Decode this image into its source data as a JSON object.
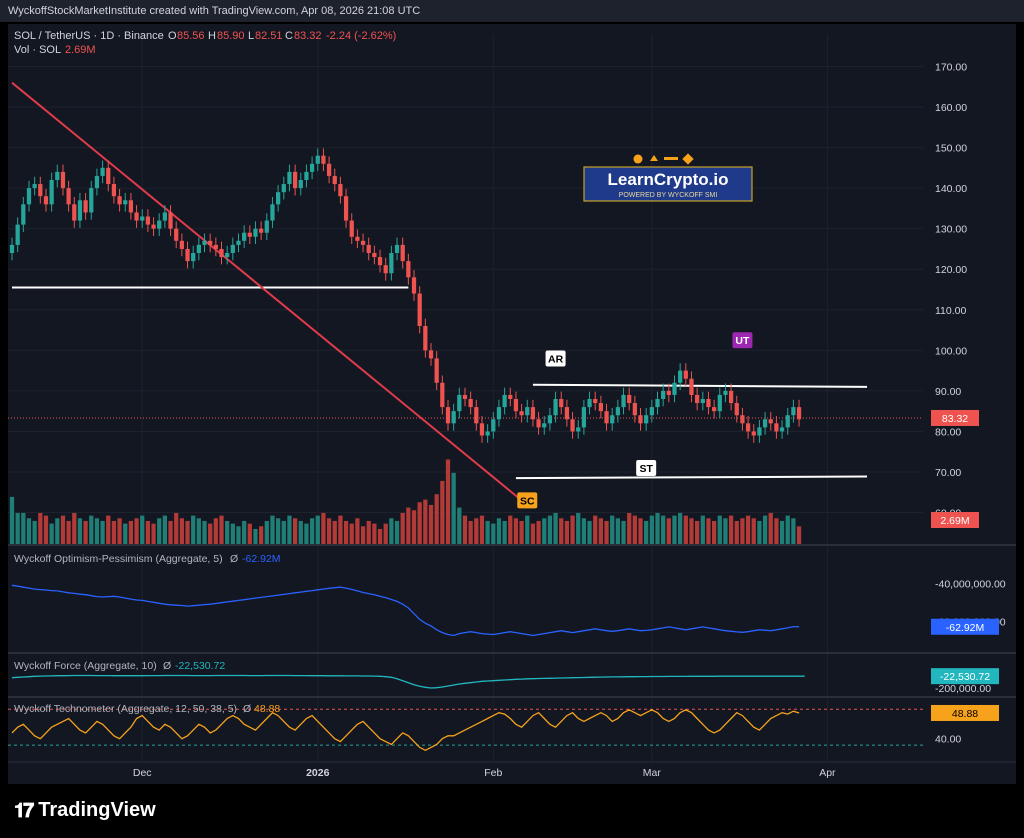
{
  "header": {
    "caption": "WyckoffStockMarketInstitute created with TradingView.com, Apr 08, 2026 21:08 UTC"
  },
  "legend": {
    "symbol": "SOL / TetherUS · 1D · Binance",
    "o_label": "O",
    "o": "85.56",
    "h_label": "H",
    "h": "85.90",
    "l_label": "L",
    "l": "82.51",
    "c_label": "C",
    "c": "83.32",
    "change": "-2.24 (-2.62%)",
    "vol_label": "Vol · SOL",
    "vol": "2.69M"
  },
  "colors": {
    "up": "#26a69a",
    "down": "#ef5350",
    "vol_up": "#1f7f77",
    "vol_down": "#b23a37",
    "trendline": "#e03b4b",
    "hline": "#ffffff",
    "osc_blue": "#2962ff",
    "osc_cyan": "#22b7bf",
    "osc_orange": "#f7a21b",
    "background": "#131722",
    "grid": "#1e222d"
  },
  "watermark": {
    "title": "LearnCrypto.io",
    "subtitle": "POWERED BY WYCKOFF SMI"
  },
  "annotations": {
    "ar": "AR",
    "ut": "UT",
    "st": "ST",
    "sc": "SC"
  },
  "chart_data": [
    {
      "type": "candlestick",
      "title": "SOL / TetherUS · 1D · Binance",
      "yaxis_ticks": [
        "170.00",
        "160.00",
        "150.00",
        "140.00",
        "130.00",
        "120.00",
        "110.00",
        "100.00",
        "90.00",
        "80.00",
        "70.00",
        "60.00"
      ],
      "ylim": [
        52,
        178
      ],
      "last_price": "83.32",
      "x_tick_labels": [
        "Dec",
        "2026",
        "Feb",
        "Mar",
        "Apr"
      ],
      "x_tick_dates": [
        "2025-12-01",
        "2026-01-01",
        "2026-02-01",
        "2026-03-01",
        "2026-04-01"
      ],
      "date_range": [
        "2025-11-08",
        "2026-04-08"
      ],
      "close": [
        126,
        131,
        136,
        140,
        141,
        138,
        136,
        142,
        144,
        140,
        136,
        132,
        137,
        134,
        140,
        143,
        145,
        141,
        138,
        136,
        137,
        134,
        132,
        133,
        131,
        130,
        132,
        134,
        130,
        127,
        125,
        122,
        124,
        126,
        127,
        126,
        125,
        123,
        124,
        126,
        127,
        129,
        128,
        130,
        129,
        132,
        136,
        139,
        141,
        144,
        140,
        142,
        144,
        146,
        148,
        146,
        143,
        141,
        138,
        132,
        128,
        127,
        126,
        124,
        123,
        121,
        119,
        124,
        126,
        122,
        118,
        114,
        106,
        100,
        98,
        92,
        86,
        82,
        85,
        89,
        88,
        86,
        82,
        79,
        80,
        83,
        86,
        89,
        88,
        85,
        84,
        86,
        83,
        81,
        82,
        84,
        88,
        86,
        83,
        80,
        81,
        86,
        88,
        87,
        85,
        82,
        84,
        86,
        89,
        87,
        84,
        82,
        84,
        86,
        88,
        90,
        89,
        92,
        95,
        93,
        89,
        87,
        88,
        86,
        85,
        89,
        90,
        87,
        84,
        82,
        80,
        79,
        81,
        83,
        82,
        80,
        81,
        84,
        86,
        83
      ],
      "horizontal_lines": [
        {
          "price": 115.5,
          "from": "2025-11-08",
          "to": "2026-01-17"
        },
        {
          "price": 91.5,
          "from": "2026-02-08",
          "to": "2026-04-08",
          "end_price": 91.0
        },
        {
          "price": 68.5,
          "from": "2026-02-05",
          "to": "2026-04-08",
          "end_price": 68.9
        }
      ],
      "trendline": {
        "from_date": "2025-11-08",
        "from_price": 166,
        "to_date": "2026-02-06",
        "to_price": 63
      },
      "labels": [
        {
          "text": "AR",
          "date": "2026-02-12",
          "price": 98
        },
        {
          "text": "UT",
          "date": "2026-03-17",
          "price": 102.5
        },
        {
          "text": "ST",
          "date": "2026-02-28",
          "price": 71
        },
        {
          "text": "SC",
          "date": "2026-02-07",
          "price": 63
        }
      ],
      "volume_label": "2.69M",
      "volume": [
        0.9,
        0.6,
        0.6,
        0.5,
        0.45,
        0.6,
        0.55,
        0.4,
        0.5,
        0.55,
        0.45,
        0.6,
        0.5,
        0.45,
        0.55,
        0.5,
        0.45,
        0.55,
        0.45,
        0.5,
        0.4,
        0.45,
        0.5,
        0.55,
        0.45,
        0.4,
        0.5,
        0.55,
        0.45,
        0.6,
        0.5,
        0.45,
        0.55,
        0.5,
        0.45,
        0.4,
        0.5,
        0.55,
        0.45,
        0.4,
        0.35,
        0.45,
        0.4,
        0.3,
        0.35,
        0.45,
        0.55,
        0.5,
        0.45,
        0.55,
        0.5,
        0.45,
        0.4,
        0.5,
        0.55,
        0.6,
        0.5,
        0.45,
        0.55,
        0.45,
        0.4,
        0.5,
        0.35,
        0.45,
        0.4,
        0.3,
        0.4,
        0.5,
        0.45,
        0.6,
        0.7,
        0.65,
        0.8,
        0.85,
        0.75,
        0.95,
        1.2,
        1.6,
        1.35,
        0.7,
        0.55,
        0.45,
        0.5,
        0.55,
        0.45,
        0.4,
        0.5,
        0.45,
        0.55,
        0.5,
        0.45,
        0.55,
        0.4,
        0.45,
        0.5,
        0.55,
        0.6,
        0.5,
        0.45,
        0.55,
        0.6,
        0.5,
        0.45,
        0.55,
        0.5,
        0.45,
        0.55,
        0.5,
        0.45,
        0.6,
        0.55,
        0.5,
        0.45,
        0.55,
        0.6,
        0.55,
        0.5,
        0.55,
        0.6,
        0.55,
        0.5,
        0.45,
        0.55,
        0.5,
        0.45,
        0.55,
        0.5,
        0.55,
        0.45,
        0.5,
        0.55,
        0.5,
        0.45,
        0.55,
        0.6,
        0.5,
        0.45,
        0.55,
        0.5,
        0.35
      ]
    },
    {
      "type": "line",
      "title": "Wyckoff Optimism-Pessimism (Aggregate, 5)",
      "symbol": "Ø",
      "last_value_label": "-62.92M",
      "yaxis_ticks": [
        "-40,000,000.00",
        "-60,000,000.00"
      ],
      "ylim": [
        -72000000,
        -34000000
      ],
      "values": [
        -41,
        -41.5,
        -42,
        -42.5,
        -43,
        -43.3,
        -43.5,
        -43.8,
        -44,
        -44.5,
        -45,
        -45.3,
        -45.7,
        -46,
        -46.5,
        -47,
        -47.2,
        -47,
        -46.8,
        -47.2,
        -47.8,
        -48.3,
        -48.8,
        -49,
        -49.5,
        -50,
        -50.5,
        -51,
        -51.3,
        -51.5,
        -51.7,
        -52,
        -51.8,
        -51.5,
        -51.2,
        -51,
        -50.6,
        -50.2,
        -49.8,
        -49.4,
        -49,
        -48.6,
        -48.2,
        -47.8,
        -47.4,
        -47,
        -46.6,
        -46.2,
        -45.8,
        -45.4,
        -45,
        -44.6,
        -44.2,
        -43.8,
        -43.4,
        -43,
        -42.6,
        -42.3,
        -42,
        -42.5,
        -43.2,
        -44,
        -44.8,
        -45.4,
        -46,
        -46.8,
        -47.5,
        -48.5,
        -49.5,
        -51,
        -53,
        -56,
        -59,
        -61,
        -62.5,
        -64.5,
        -66,
        -67,
        -67.5,
        -66.5,
        -66,
        -65.5,
        -66,
        -66.5,
        -66.8,
        -67,
        -66.5,
        -66,
        -65.5,
        -66,
        -66.5,
        -67,
        -67.5,
        -67,
        -66.5,
        -66,
        -65.5,
        -65,
        -65.5,
        -66,
        -65.5,
        -65,
        -64.5,
        -64,
        -64.5,
        -65,
        -65.3,
        -65,
        -64.5,
        -64,
        -64.5,
        -65,
        -64.8,
        -64.5,
        -64,
        -63.5,
        -63,
        -63.5,
        -64,
        -64.5,
        -64,
        -63.5,
        -63,
        -63.5,
        -64,
        -64.5,
        -65,
        -65.3,
        -65.6,
        -65.8,
        -65.5,
        -65,
        -64.5,
        -64.7,
        -65,
        -64.5,
        -64,
        -63.5,
        -62.8,
        -62.9
      ]
    },
    {
      "type": "line",
      "title": "Wyckoff Force (Aggregate, 10)",
      "symbol": "Ø",
      "last_value_label": "-22,530.72",
      "yaxis_ticks": [
        "-200,000.00"
      ],
      "ylim": [
        -260000,
        40000
      ],
      "values": [
        -45000,
        -40000,
        -35000,
        -30000,
        -25000,
        -22000,
        -20000,
        -18000,
        -16000,
        -15000,
        -14000,
        -13000,
        -12000,
        -12500,
        -13000,
        -13500,
        -14000,
        -14500,
        -15000,
        -15500,
        -16000,
        -16000,
        -15500,
        -15000,
        -14500,
        -14000,
        -13500,
        -13000,
        -12500,
        -12000,
        -12500,
        -13000,
        -13500,
        -14000,
        -14000,
        -13500,
        -13000,
        -12500,
        -12000,
        -12000,
        -12500,
        -13000,
        -13500,
        -14000,
        -13500,
        -13000,
        -12500,
        -12000,
        -12500,
        -13000,
        -13500,
        -14000,
        -14500,
        -15000,
        -15500,
        -16000,
        -16500,
        -17000,
        -17500,
        -18000,
        -18500,
        -19000,
        -19500,
        -20000,
        -22000,
        -25000,
        -30000,
        -40000,
        -60000,
        -90000,
        -120000,
        -150000,
        -175000,
        -190000,
        -200000,
        -195000,
        -185000,
        -170000,
        -155000,
        -140000,
        -130000,
        -120000,
        -110000,
        -100000,
        -95000,
        -90000,
        -85000,
        -80000,
        -75000,
        -70000,
        -66000,
        -62000,
        -60000,
        -58000,
        -56000,
        -54000,
        -52000,
        -50000,
        -48000,
        -46000,
        -44000,
        -42000,
        -40000,
        -38000,
        -36000,
        -35000,
        -34000,
        -33000,
        -32000,
        -31000,
        -30000,
        -29000,
        -28500,
        -28000,
        -27500,
        -27000,
        -26500,
        -26000,
        -26000,
        -25500,
        -25000,
        -25000,
        -24500,
        -24000,
        -24000,
        -23500,
        -23500,
        -23000,
        -23000,
        -23000,
        -22800,
        -22700,
        -22600,
        -22600,
        -22550,
        -22530,
        -22530,
        -22530,
        -22530,
        -22530,
        -22531
      ]
    },
    {
      "type": "line",
      "title": "Wyckoff Technometer (Aggregate, 12, 50, 38, 5)",
      "symbol": "Ø",
      "last_value_label": "48.88",
      "yaxis_ticks": [
        "40.00"
      ],
      "ylim": [
        33,
        52
      ],
      "levels": [
        50.2,
        37.8
      ],
      "values": [
        42,
        44,
        45,
        43,
        41,
        40,
        42,
        44,
        45,
        46,
        47,
        45,
        43,
        42,
        44,
        46,
        45,
        43,
        41,
        40,
        42,
        44,
        47,
        48,
        46,
        44,
        43,
        45,
        44,
        42,
        40,
        41,
        43,
        45,
        44,
        42,
        43,
        45,
        47,
        48,
        47,
        45,
        44,
        43,
        45,
        47,
        49,
        48,
        46,
        44,
        43,
        45,
        47,
        48,
        46,
        44,
        42,
        40,
        39,
        41,
        43,
        45,
        46,
        44,
        42,
        40,
        39,
        38,
        40,
        42,
        41,
        39,
        37,
        36,
        37,
        38,
        40,
        41,
        41,
        42,
        43,
        44,
        45,
        46,
        47,
        48,
        49,
        48.5,
        47,
        45,
        44,
        46,
        48,
        49,
        47,
        45,
        44,
        46,
        48,
        49,
        47,
        46,
        47,
        48,
        49,
        48,
        46,
        47,
        49,
        50,
        49,
        48,
        49,
        50,
        49,
        47,
        46,
        47,
        49,
        50,
        49,
        47,
        45,
        43,
        42,
        43,
        45,
        47,
        49,
        48,
        46,
        44,
        43,
        45,
        47,
        48,
        49,
        48.5,
        49.5,
        48.9
      ]
    }
  ]
}
